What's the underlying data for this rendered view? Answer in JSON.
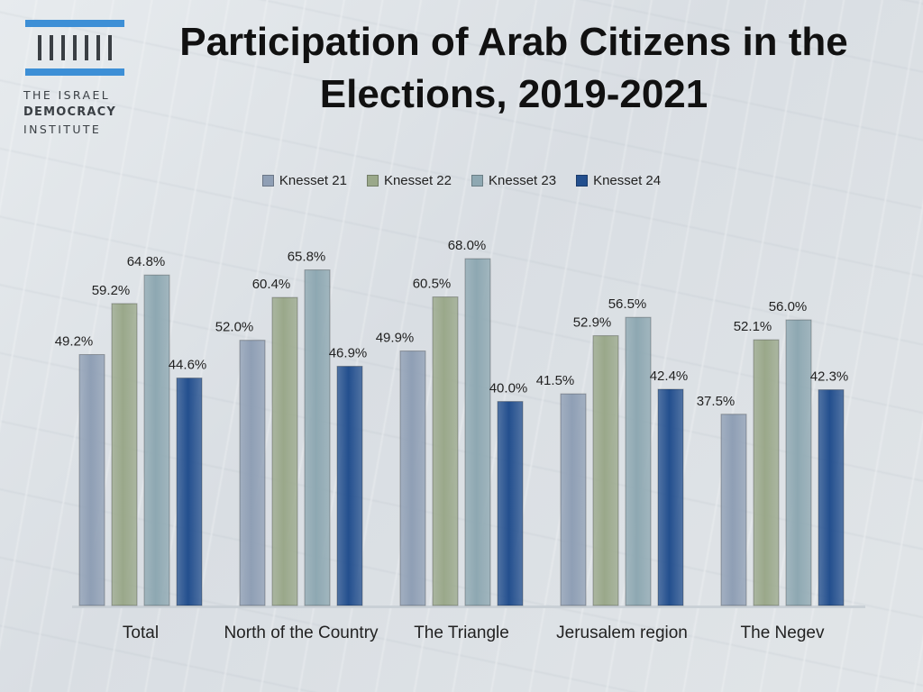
{
  "logo": {
    "line1": "THE ISRAEL",
    "line2": "DEMOCRACY",
    "line3": "INSTITUTE"
  },
  "colors": {
    "brand_blue": "#3d8fd6",
    "knesset21": "#8f9fb5",
    "knesset22": "#9aa88a",
    "knesset23": "#8ea8b2",
    "knesset24": "#234f8e"
  },
  "chart_data": {
    "type": "bar",
    "title": "Participation of Arab Citizens in the Elections, 2019-2021",
    "categories": [
      "Total",
      "North of the Country",
      "The Triangle",
      "Jerusalem region",
      "The Negev"
    ],
    "series": [
      {
        "name": "Knesset 21",
        "values": [
          49.2,
          52.0,
          49.9,
          41.5,
          37.5
        ]
      },
      {
        "name": "Knesset 22",
        "values": [
          59.2,
          60.4,
          60.5,
          52.9,
          52.1
        ]
      },
      {
        "name": "Knesset 23",
        "values": [
          64.8,
          65.8,
          68.0,
          56.5,
          56.0
        ]
      },
      {
        "name": "Knesset 24",
        "values": [
          44.6,
          46.9,
          40.0,
          42.4,
          42.3
        ]
      }
    ],
    "value_labels": [
      [
        "49.2%",
        "59.2%",
        "64.8%",
        "44.6%"
      ],
      [
        "52.0%",
        "60.4%",
        "65.8%",
        "46.9%"
      ],
      [
        "49.9%",
        "60.5%",
        "68.0%",
        "40.0%"
      ],
      [
        "41.5%",
        "52.9%",
        "56.5%",
        "42.4%"
      ],
      [
        "37.5%",
        "52.1%",
        "56.0%",
        "42.3%"
      ]
    ],
    "ylim": [
      0,
      100
    ],
    "legend_position": "top",
    "grid": false,
    "xlabel": "",
    "ylabel": ""
  }
}
